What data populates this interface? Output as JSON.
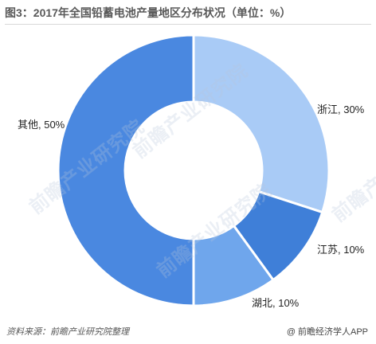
{
  "title": "图3：2017年全国铅蓄电池产量地区分布状况（单位：%）",
  "watermark": "前瞻产业研究院",
  "footer": {
    "source": "资料来源：前瞻产业研究院整理",
    "brand_symbol": "@",
    "brand": "前瞻经济学人APP"
  },
  "chart_data": {
    "type": "pie",
    "variant": "donut",
    "title": "图3：2017年全国铅蓄电池产量地区分布状况（单位：%）",
    "unit": "%",
    "slices": [
      {
        "name": "浙江",
        "value": 30,
        "label": "浙江, 30%",
        "color": "#a9cbf6"
      },
      {
        "name": "江苏",
        "value": 10,
        "label": "江苏, 10%",
        "color": "#3f7fd8"
      },
      {
        "name": "湖北",
        "value": 10,
        "label": "湖北, 10%",
        "color": "#6fa6ec"
      },
      {
        "name": "其他",
        "value": 50,
        "label": "其他, 50%",
        "color": "#4a88e0"
      }
    ]
  }
}
